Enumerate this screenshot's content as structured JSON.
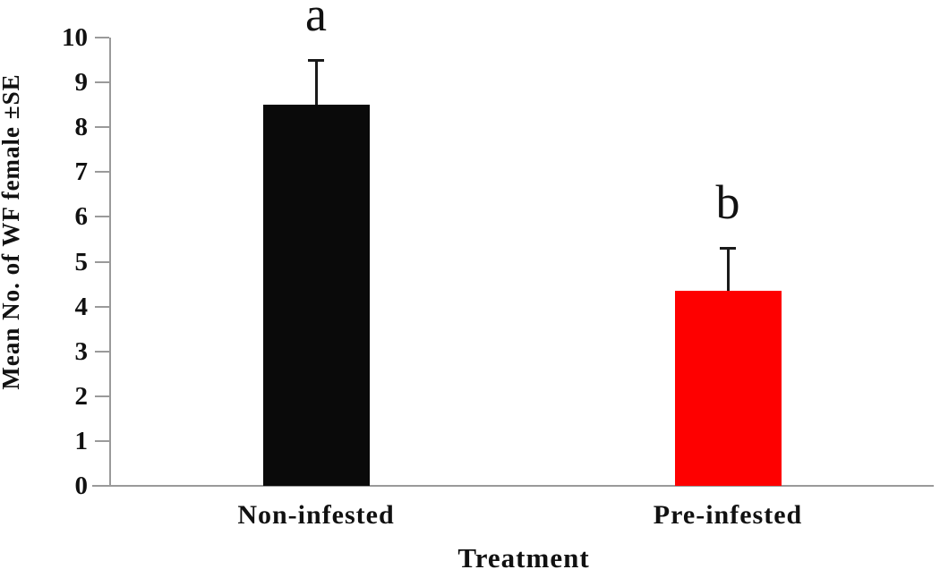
{
  "chart_data": {
    "type": "bar",
    "title": "",
    "xlabel": "Treatment",
    "ylabel": "Mean No. of WF female ±SE",
    "categories": [
      "Non-infested",
      "Pre-infested"
    ],
    "values": [
      8.5,
      4.35
    ],
    "errors": [
      1.0,
      0.95
    ],
    "error_direction": "upper-only",
    "sig_letters": [
      "a",
      "b"
    ],
    "bar_colors": [
      "#0a0a0a",
      "#fe0000"
    ],
    "ylim": [
      0,
      10
    ],
    "yticks": [
      0,
      1,
      2,
      3,
      4,
      5,
      6,
      7,
      8,
      9,
      10
    ],
    "grid": false,
    "legend": false,
    "axis_color": "#9a9a9a",
    "background": "#ffffff"
  }
}
